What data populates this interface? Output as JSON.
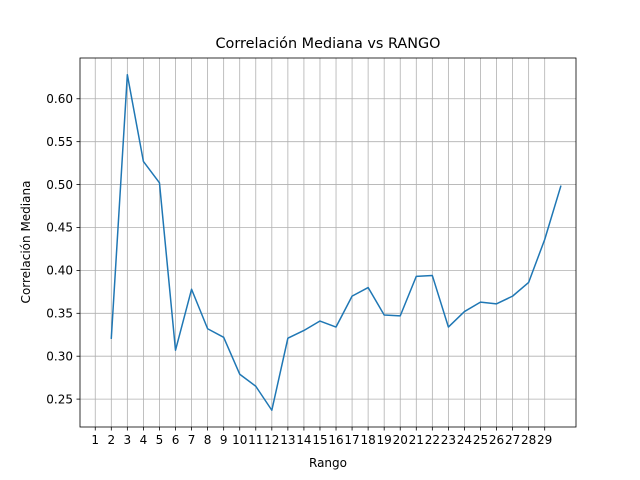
{
  "chart_data": {
    "type": "line",
    "title": "Correlación Mediana vs RANGO",
    "xlabel": "Rango",
    "ylabel": "Correlación Mediana",
    "x_ticks": [
      1,
      2,
      3,
      4,
      5,
      6,
      7,
      8,
      9,
      10,
      11,
      12,
      13,
      14,
      15,
      16,
      17,
      18,
      19,
      20,
      21,
      22,
      23,
      24,
      25,
      26,
      27,
      28,
      29
    ],
    "y_ticks": [
      0.25,
      0.3,
      0.35,
      0.4,
      0.45,
      0.5,
      0.55,
      0.6
    ],
    "y_tick_labels": [
      "0.25",
      "0.30",
      "0.35",
      "0.40",
      "0.45",
      "0.50",
      "0.55",
      "0.60"
    ],
    "xlim": [
      0.05,
      30.95
    ],
    "ylim": [
      0.2175,
      0.6475
    ],
    "grid": true,
    "line_color": "#1f77b4",
    "series": [
      {
        "x": [
          2,
          3,
          4,
          5,
          6,
          7,
          8,
          9,
          10,
          11,
          12,
          13,
          14,
          15,
          16,
          17,
          18,
          19,
          20,
          21,
          22,
          23,
          24,
          25,
          26,
          27,
          28,
          29,
          30
        ],
        "values": [
          0.321,
          0.628,
          0.527,
          0.502,
          0.307,
          0.378,
          0.332,
          0.322,
          0.279,
          0.265,
          0.237,
          0.321,
          0.33,
          0.341,
          0.334,
          0.37,
          0.38,
          0.348,
          0.347,
          0.393,
          0.394,
          0.334,
          0.352,
          0.363,
          0.361,
          0.37,
          0.386,
          0.436,
          0.498
        ]
      }
    ]
  }
}
